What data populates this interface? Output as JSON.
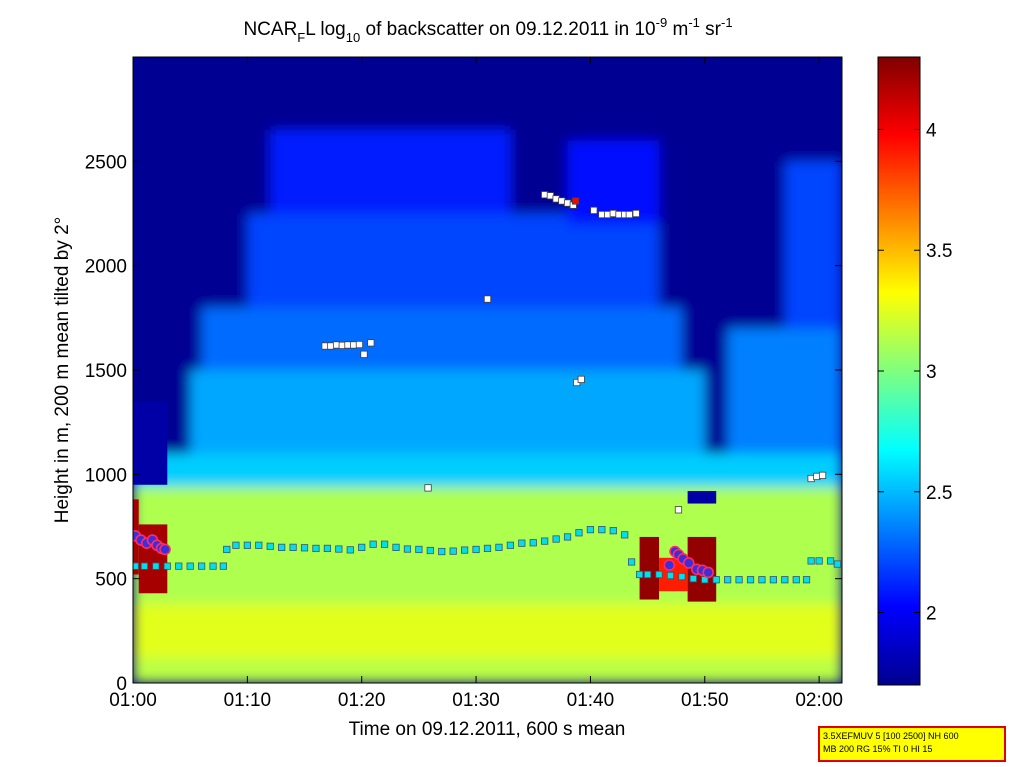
{
  "chart_data": {
    "type": "heatmap",
    "title_parts": [
      "NCAR",
      "F",
      "L log",
      "10",
      " of backscatter on 09.12.2011 in 10",
      "-9",
      " m",
      "-1",
      " sr",
      "-1"
    ],
    "xlabel": "Time on 09.12.2011, 600 s mean",
    "ylabel": "Height in m, 200 m mean tilted by 2°",
    "xlim": [
      0,
      62
    ],
    "ylim": [
      0,
      3000
    ],
    "x_ticks": [
      {
        "x": 0,
        "label": "01:00"
      },
      {
        "x": 10,
        "label": "01:10"
      },
      {
        "x": 20,
        "label": "01:20"
      },
      {
        "x": 30,
        "label": "01:30"
      },
      {
        "x": 40,
        "label": "01:40"
      },
      {
        "x": 50,
        "label": "01:50"
      },
      {
        "x": 60,
        "label": "02:00"
      }
    ],
    "y_ticks": [
      {
        "y": 0,
        "label": "0"
      },
      {
        "y": 500,
        "label": "500"
      },
      {
        "y": 1000,
        "label": "1000"
      },
      {
        "y": 1500,
        "label": "1500"
      },
      {
        "y": 2000,
        "label": "2000"
      },
      {
        "y": 2500,
        "label": "2500"
      }
    ],
    "colorbar": {
      "clim": [
        1.7,
        4.3
      ],
      "ticks": [
        {
          "v": 2,
          "label": "2"
        },
        {
          "v": 2.5,
          "label": "2.5"
        },
        {
          "v": 3,
          "label": "3"
        },
        {
          "v": 3.5,
          "label": "3.5"
        },
        {
          "v": 4,
          "label": "4"
        }
      ]
    },
    "field_regions": [
      {
        "x0": 0,
        "x1": 62,
        "y0": 0,
        "y1": 3000,
        "v": 1.75
      },
      {
        "x0": 0,
        "x1": 62,
        "y0": 0,
        "y1": 1100,
        "v": 2.55
      },
      {
        "x0": 5,
        "x1": 50,
        "y0": 1100,
        "y1": 1500,
        "v": 2.45
      },
      {
        "x0": 6,
        "x1": 48,
        "y0": 1500,
        "y1": 1800,
        "v": 2.3
      },
      {
        "x0": 10,
        "x1": 46,
        "y0": 1800,
        "y1": 2250,
        "v": 2.2
      },
      {
        "x0": 12,
        "x1": 33,
        "y0": 2250,
        "y1": 2650,
        "v": 2.1
      },
      {
        "x0": 38,
        "x1": 46,
        "y0": 2200,
        "y1": 2600,
        "v": 2.05
      },
      {
        "x0": 52,
        "x1": 62,
        "y0": 1100,
        "y1": 1700,
        "v": 2.35
      },
      {
        "x0": 57,
        "x1": 62,
        "y0": 1700,
        "y1": 2500,
        "v": 2.2
      },
      {
        "x0": 0,
        "x1": 62,
        "y0": 0,
        "y1": 940,
        "v": 3.12
      },
      {
        "x0": 0,
        "x1": 62,
        "y0": 0,
        "y1": 380,
        "v": 3.25
      },
      {
        "x0": 0,
        "x1": 62,
        "y0": 0,
        "y1": 120,
        "v": 3.15
      },
      {
        "x0": 0,
        "x1": 3,
        "y0": 950,
        "y1": 1350,
        "v": 1.8
      },
      {
        "x0": 0,
        "x1": 0.5,
        "y0": 520,
        "y1": 880,
        "v": 4.2
      },
      {
        "x0": 0.5,
        "x1": 3,
        "y0": 430,
        "y1": 760,
        "v": 4.2
      },
      {
        "x0": 44.3,
        "x1": 46,
        "y0": 400,
        "y1": 700,
        "v": 4.25
      },
      {
        "x0": 46,
        "x1": 48.5,
        "y0": 440,
        "y1": 600,
        "v": 3.9
      },
      {
        "x0": 48.5,
        "x1": 51,
        "y0": 390,
        "y1": 700,
        "v": 4.25
      },
      {
        "x0": 48.5,
        "x1": 51,
        "y0": 860,
        "y1": 920,
        "v": 1.8
      }
    ],
    "cloud_base_series": [
      {
        "x": 0.2,
        "y": 560
      },
      {
        "x": 1,
        "y": 560
      },
      {
        "x": 2,
        "y": 560
      },
      {
        "x": 3,
        "y": 560
      },
      {
        "x": 4,
        "y": 560
      },
      {
        "x": 5,
        "y": 560
      },
      {
        "x": 6,
        "y": 560
      },
      {
        "x": 7,
        "y": 560
      },
      {
        "x": 7.9,
        "y": 560
      },
      {
        "x": 8.2,
        "y": 640
      },
      {
        "x": 9,
        "y": 660
      },
      {
        "x": 10,
        "y": 660
      },
      {
        "x": 11,
        "y": 660
      },
      {
        "x": 12,
        "y": 655
      },
      {
        "x": 13,
        "y": 650
      },
      {
        "x": 14,
        "y": 650
      },
      {
        "x": 15,
        "y": 648
      },
      {
        "x": 16,
        "y": 645
      },
      {
        "x": 17,
        "y": 645
      },
      {
        "x": 18,
        "y": 642
      },
      {
        "x": 19,
        "y": 638
      },
      {
        "x": 20,
        "y": 650
      },
      {
        "x": 21,
        "y": 665
      },
      {
        "x": 22,
        "y": 665
      },
      {
        "x": 23,
        "y": 650
      },
      {
        "x": 24,
        "y": 642
      },
      {
        "x": 25,
        "y": 640
      },
      {
        "x": 26,
        "y": 635
      },
      {
        "x": 27,
        "y": 630
      },
      {
        "x": 28,
        "y": 632
      },
      {
        "x": 29,
        "y": 637
      },
      {
        "x": 30,
        "y": 640
      },
      {
        "x": 31,
        "y": 645
      },
      {
        "x": 32,
        "y": 650
      },
      {
        "x": 33,
        "y": 660
      },
      {
        "x": 34,
        "y": 670
      },
      {
        "x": 35,
        "y": 672
      },
      {
        "x": 36,
        "y": 680
      },
      {
        "x": 37,
        "y": 690
      },
      {
        "x": 38,
        "y": 700
      },
      {
        "x": 39,
        "y": 720
      },
      {
        "x": 40,
        "y": 735
      },
      {
        "x": 41,
        "y": 735
      },
      {
        "x": 42,
        "y": 730
      },
      {
        "x": 43,
        "y": 710
      },
      {
        "x": 43.6,
        "y": 580
      },
      {
        "x": 44.3,
        "y": 520
      },
      {
        "x": 45,
        "y": 520
      },
      {
        "x": 46,
        "y": 520
      },
      {
        "x": 47,
        "y": 515
      },
      {
        "x": 48,
        "y": 510
      },
      {
        "x": 49,
        "y": 500
      },
      {
        "x": 50,
        "y": 495
      },
      {
        "x": 51,
        "y": 495
      },
      {
        "x": 52,
        "y": 495
      },
      {
        "x": 53,
        "y": 495
      },
      {
        "x": 54,
        "y": 495
      },
      {
        "x": 55,
        "y": 495
      },
      {
        "x": 56,
        "y": 495
      },
      {
        "x": 57,
        "y": 495
      },
      {
        "x": 58,
        "y": 495
      },
      {
        "x": 58.9,
        "y": 495
      },
      {
        "x": 59.3,
        "y": 585
      },
      {
        "x": 60,
        "y": 585
      },
      {
        "x": 61,
        "y": 585
      },
      {
        "x": 61.6,
        "y": 570
      }
    ],
    "upper_layer_points": [
      {
        "x": 16.8,
        "y": 1615
      },
      {
        "x": 17.3,
        "y": 1615
      },
      {
        "x": 17.8,
        "y": 1620
      },
      {
        "x": 18.3,
        "y": 1618
      },
      {
        "x": 18.8,
        "y": 1620
      },
      {
        "x": 19.3,
        "y": 1620
      },
      {
        "x": 19.8,
        "y": 1622
      },
      {
        "x": 20.2,
        "y": 1575
      },
      {
        "x": 20.8,
        "y": 1630
      },
      {
        "x": 25.8,
        "y": 935
      },
      {
        "x": 31,
        "y": 1840
      },
      {
        "x": 36,
        "y": 2340
      },
      {
        "x": 36.5,
        "y": 2335
      },
      {
        "x": 37,
        "y": 2320
      },
      {
        "x": 37.5,
        "y": 2310
      },
      {
        "x": 38,
        "y": 2300
      },
      {
        "x": 38.5,
        "y": 2290
      },
      {
        "x": 38.8,
        "y": 1440
      },
      {
        "x": 39.2,
        "y": 1455
      },
      {
        "x": 40.3,
        "y": 2265
      },
      {
        "x": 41,
        "y": 2245
      },
      {
        "x": 41.5,
        "y": 2245
      },
      {
        "x": 42,
        "y": 2250
      },
      {
        "x": 42.5,
        "y": 2245
      },
      {
        "x": 43,
        "y": 2245
      },
      {
        "x": 43.4,
        "y": 2245
      },
      {
        "x": 44,
        "y": 2250
      },
      {
        "x": 47.7,
        "y": 830
      },
      {
        "x": 59.3,
        "y": 980
      },
      {
        "x": 59.8,
        "y": 990
      },
      {
        "x": 60.3,
        "y": 995
      }
    ],
    "red_points": [
      {
        "x": 38.7,
        "y": 2310
      }
    ],
    "precip_markers": [
      {
        "x": 0.2,
        "y": 705
      },
      {
        "x": 0.7,
        "y": 685
      },
      {
        "x": 1.2,
        "y": 670
      },
      {
        "x": 1.7,
        "y": 685
      },
      {
        "x": 2.1,
        "y": 660
      },
      {
        "x": 2.5,
        "y": 645
      },
      {
        "x": 2.8,
        "y": 640
      },
      {
        "x": 46.9,
        "y": 565
      },
      {
        "x": 47.4,
        "y": 630
      },
      {
        "x": 47.7,
        "y": 615
      },
      {
        "x": 48.1,
        "y": 595
      },
      {
        "x": 48.6,
        "y": 575
      },
      {
        "x": 49.3,
        "y": 545
      },
      {
        "x": 49.8,
        "y": 540
      },
      {
        "x": 50.3,
        "y": 530
      }
    ]
  },
  "info_box": {
    "line1": "3.5XEFMUV 5 [100 2500] NH 600",
    "line2": "MB 200 RG 15% TI 0 HI 15"
  }
}
